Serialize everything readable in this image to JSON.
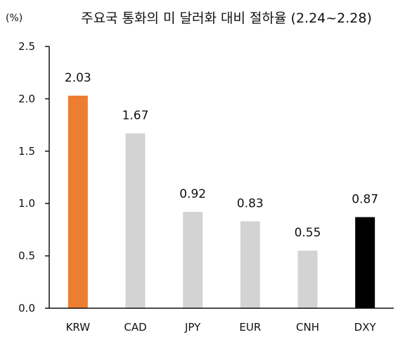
{
  "chart_data": {
    "type": "bar",
    "title": "주요국 통화의 미 달러화 대비 절하율 (2.24~2.28)",
    "unit_label": "(%)",
    "categories": [
      "KRW",
      "CAD",
      "JPY",
      "EUR",
      "CNH",
      "DXY"
    ],
    "values": [
      2.03,
      1.67,
      0.92,
      0.83,
      0.55,
      0.87
    ],
    "value_labels": [
      "2.03",
      "1.67",
      "0.92",
      "0.83",
      "0.55",
      "0.87"
    ],
    "colors": [
      "#ED7D31",
      "#D3D3D3",
      "#D3D3D3",
      "#D3D3D3",
      "#D3D3D3",
      "#000000"
    ],
    "yticks": [
      "0.0",
      "0.5",
      "1.0",
      "1.5",
      "2.0",
      "2.5"
    ],
    "ylim": [
      0,
      2.5
    ],
    "grid": false,
    "legend": "none"
  }
}
